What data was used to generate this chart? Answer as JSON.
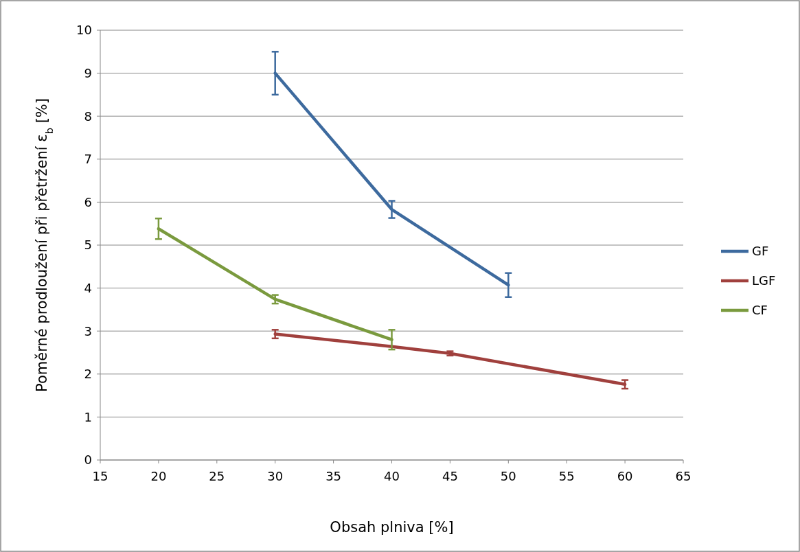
{
  "chart_data": {
    "type": "line",
    "xlabel": "Obsah plniva [%]",
    "ylabel": "Poměrné prodloužení při přetržení ε$_{b}$ [%]",
    "xlim": [
      15,
      65
    ],
    "xticks": [
      15,
      20,
      25,
      30,
      35,
      40,
      45,
      50,
      55,
      60,
      65
    ],
    "ylim": [
      0,
      10
    ],
    "yticks": [
      0,
      1,
      2,
      3,
      4,
      5,
      6,
      7,
      8,
      9,
      10
    ],
    "grid": "y",
    "legend": "right",
    "marker": "none",
    "line_style": "solid",
    "series": [
      {
        "name": "GF",
        "color": "#3d6a9e",
        "x": [
          30,
          40,
          50
        ],
        "values": [
          9.0,
          5.83,
          4.07
        ],
        "errors": [
          0.5,
          0.2,
          0.28
        ]
      },
      {
        "name": "LGF",
        "color": "#a0403d",
        "x": [
          30,
          40,
          45,
          60
        ],
        "values": [
          2.93,
          2.64,
          2.48,
          1.76
        ],
        "errors": [
          0.1,
          null,
          0.05,
          0.1
        ]
      },
      {
        "name": "CF",
        "color": "#7a9a3e",
        "x": [
          20,
          30,
          40
        ],
        "values": [
          5.38,
          3.74,
          2.8
        ],
        "errors": [
          0.24,
          0.1,
          0.23
        ]
      }
    ]
  }
}
